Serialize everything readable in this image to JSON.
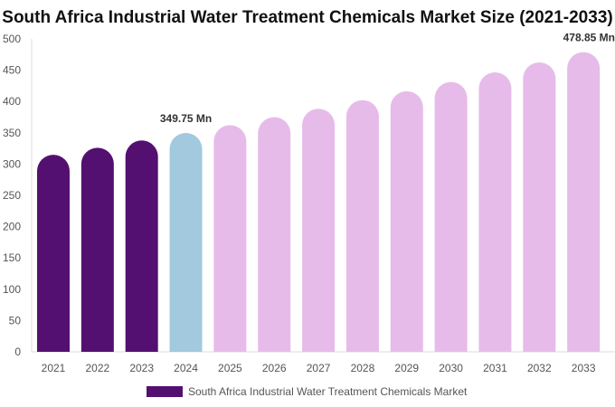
{
  "chart_data": {
    "type": "bar",
    "title": "South Africa Industrial Water Treatment Chemicals Market Size (2021-2033)",
    "xlabel": "",
    "ylabel": "",
    "ylim": [
      0,
      500
    ],
    "yticks": [
      0,
      50,
      100,
      150,
      200,
      250,
      300,
      350,
      400,
      450,
      500
    ],
    "categories": [
      "2021",
      "2022",
      "2023",
      "2024",
      "2025",
      "2026",
      "2027",
      "2028",
      "2029",
      "2030",
      "2031",
      "2032",
      "2033"
    ],
    "series": [
      {
        "name": "South Africa Industrial Water Treatment Chemicals Market",
        "values": [
          314.9,
          326.1,
          337.7,
          349.75,
          362.2,
          375.0,
          388.3,
          402.1,
          416.4,
          431.2,
          446.5,
          462.4,
          478.85
        ]
      }
    ],
    "data_labels": [
      {
        "category": "2024",
        "text": "349.75 Mn"
      },
      {
        "category": "2033",
        "text": "478.85 Mn"
      }
    ],
    "colors": {
      "historical": "#541070",
      "base_year": "#a3c9de",
      "forecast": "#e6bbe9"
    },
    "grid": false,
    "legend": "bottom"
  }
}
